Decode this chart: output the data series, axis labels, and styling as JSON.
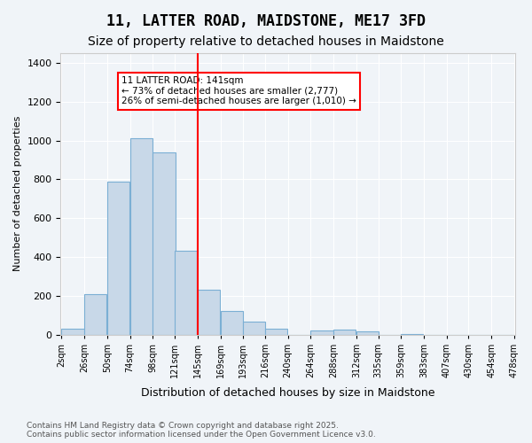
{
  "title1": "11, LATTER ROAD, MAIDSTONE, ME17 3FD",
  "title2": "Size of property relative to detached houses in Maidstone",
  "xlabel": "Distribution of detached houses by size in Maidstone",
  "ylabel": "Number of detached properties",
  "bins": [
    2,
    26,
    50,
    74,
    98,
    121,
    145,
    169,
    193,
    216,
    240,
    264,
    288,
    312,
    335,
    359,
    383,
    407,
    430,
    454,
    478
  ],
  "bin_labels": [
    "2sqm",
    "26sqm",
    "50sqm",
    "74sqm",
    "98sqm",
    "121sqm",
    "145sqm",
    "169sqm",
    "193sqm",
    "216sqm",
    "240sqm",
    "264sqm",
    "288sqm",
    "312sqm",
    "335sqm",
    "359sqm",
    "383sqm",
    "407sqm",
    "430sqm",
    "454sqm",
    "478sqm"
  ],
  "values": [
    30,
    210,
    790,
    1010,
    940,
    430,
    230,
    120,
    65,
    30,
    0,
    20,
    25,
    15,
    0,
    5,
    0,
    0,
    0,
    0
  ],
  "bar_color": "#c8d8e8",
  "bar_edge_color": "#7bafd4",
  "red_line_x": 145,
  "red_line_bin_index": 6,
  "annotation_text": "11 LATTER ROAD: 141sqm\n← 73% of detached houses are smaller (2,777)\n26% of semi-detached houses are larger (1,010) →",
  "annotation_box_color": "white",
  "annotation_box_edge": "red",
  "ylim": [
    0,
    1450
  ],
  "yticks": [
    0,
    200,
    400,
    600,
    800,
    1000,
    1200,
    1400
  ],
  "footer": "Contains HM Land Registry data © Crown copyright and database right 2025.\nContains public sector information licensed under the Open Government Licence v3.0.",
  "bg_color": "#f0f4f8",
  "plot_bg_color": "#f0f4f8",
  "title_fontsize": 12,
  "subtitle_fontsize": 10
}
